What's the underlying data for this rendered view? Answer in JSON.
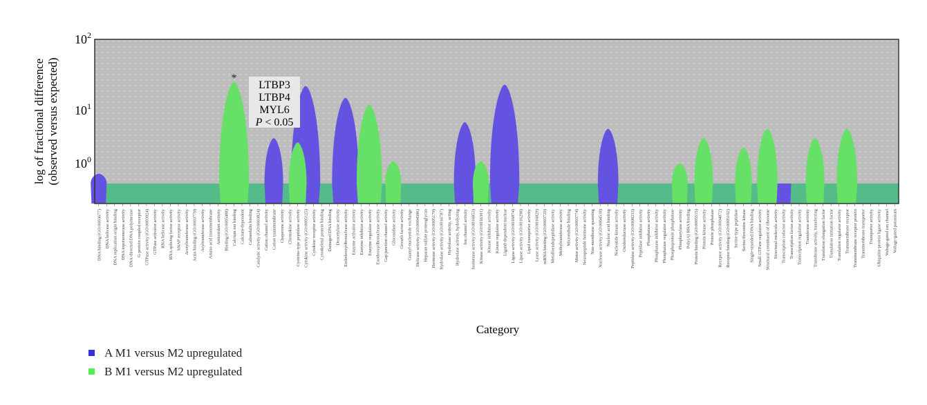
{
  "chart_data": {
    "type": "area",
    "title": "",
    "xlabel": "Category",
    "ylabel": "log of fractional difference",
    "ylabel_sub": "(observed versus expected)",
    "yscale": "log",
    "ylim": [
      0.5,
      100
    ],
    "yticks": [
      {
        "value": 1,
        "base": "10",
        "exp": "0"
      },
      {
        "value": 10,
        "base": "10",
        "exp": "1"
      },
      {
        "value": 100,
        "base": "10",
        "exp": "2"
      }
    ],
    "grid": true,
    "legend_position": "bottom-left",
    "annotation": {
      "category": "Calcium ion binding",
      "marker": "*",
      "lines": [
        "LTBP3",
        "LTBP4",
        "MYL6"
      ],
      "p_label": "P",
      "p_text": " < 0.05"
    },
    "categories": [
      "DNA binding (GO:0003677)",
      "DNA helicase activity",
      "DNA replication origin binding",
      "DNA topoisomerase activity",
      "DNA-directed DNA polymerase",
      "G-protein coupled receptor",
      "GTPase activity (GO:0003924)",
      "GTPase activator activity",
      "RNA helicase activity",
      "RNA splicing factor activity",
      "SNAP receptor activity",
      "Acetyltransferase activity",
      "Actin binding (GO:0003779)",
      "Acyltransferase activity",
      "Amino acid transmembrane",
      "Antioxidant activity",
      "Binding (GO:0005488)",
      "Calcium ion binding",
      "Calcium-dependent",
      "Calmodulin binding",
      "Catalytic activity (GO:0003824)",
      "Cation channel activity",
      "Cation transmembrane",
      "Chaperone activity",
      "Chemokine activity",
      "Cysteine-type peptidase activity",
      "Cytokine activity (GO:0005125)",
      "Cytokine receptor activity",
      "Cytoskeletal protein binding",
      "Damaged DNA binding",
      "Deacetylase activity",
      "Endodeoxyribonuclease activity",
      "Enzyme activator activity",
      "Enzyme inhibitor activity",
      "Enzyme regulator activity",
      "Exodeoxyribonuclease activity",
      "Gap junction channel activity",
      "Glucosidase activity",
      "Growth factor activity",
      "Guanyl-nucleotide exchange",
      "Helicase activity (GO:0004386)",
      "Heparan sulfate proteoglycan",
      "Hormone activity (GO:0005179)",
      "Hydrolase activity (GO:0016787)",
      "Hydrolase activity, acting",
      "Hydrolase activity, hydrolyzing",
      "Ion channel activity",
      "Isomerase activity (GO:0016853)",
      "Kinase activity (GO:0016301)",
      "Kinase inhibitor activity",
      "Kinase regulator activity",
      "Ligand-dependent nuclear",
      "Ligase activity (GO:0016874)",
      "Lipase activity (GO:0016298)",
      "Lipid transporter activity",
      "Lyase activity (GO:0016829)",
      "mRNA binding (GO:0003729)",
      "Metalloendopeptidase activity",
      "Methyltransferase activity",
      "Microtubule binding",
      "Motor activity (GO:0003774)",
      "Neuropeptide hormone activity",
      "Non-membrane spanning",
      "Nuclease activity (GO:0004518)",
      "Nucleic acid binding",
      "Nucleotide kinase activity",
      "Oxidoreductase activity",
      "Peptidase activity (GO:0008233)",
      "Peptidase inhibitor activity",
      "Phosphatase activity",
      "Phosphatase inhibitor activity",
      "Phosphatase regulator activity",
      "Phosphoprotein phosphatase",
      "Phosphorylase activity",
      "Poly(A) RNA binding",
      "Protein binding (GO:0005515)",
      "Protein kinase activity",
      "Protein phosphatase",
      "Receptor activity (GO:0004872)",
      "Receptor binding (GO:0005102)",
      "Serine-type peptidase",
      "Serine/threonine kinase",
      "Single-stranded DNA binding",
      "Small GTPase regulator activity",
      "Structural constituent of ribosome",
      "Structural molecule activity",
      "Transcription cofactor activity",
      "Transcription factor activity",
      "Transcription regulator activity",
      "Transferase activity",
      "Transferase activity, transferring",
      "Translation elongation factor",
      "Translation initiation factor",
      "Translation regulator activity",
      "Transmembrane receptor",
      "Transmembrane receptor protein",
      "Transmembrane transporter",
      "Transporter activity",
      "Ubiquitin-protein ligase activity",
      "Voltage-gated ion channel",
      "Voltage-gated potassium"
    ],
    "series": [
      {
        "name": "A M1 versus M2 upregulated",
        "color": "#6452e0",
        "points": [
          {
            "category": "DNA binding (GO:0003677)",
            "value": 0.7
          },
          {
            "category": "Cation transmembrane",
            "value": 3
          },
          {
            "category": "Cytokine activity (GO:0005125)",
            "value": 22
          },
          {
            "category": "Endodeoxyribonuclease activity",
            "value": 15
          },
          {
            "category": "Enzyme inhibitor activity",
            "value": 0.6
          },
          {
            "category": "Ion channel activity",
            "value": 6
          },
          {
            "category": "Ligand-dependent nuclear",
            "value": 23
          },
          {
            "category": "Nucleic acid binding",
            "value": 4.5
          },
          {
            "category": "Transcription cofactor activity",
            "value": 0.5
          }
        ]
      },
      {
        "name": "B M1 versus M2 upregulated",
        "color": "#66e066",
        "points": [
          {
            "category": "Calcium ion binding",
            "value": 25
          },
          {
            "category": "Cysteine-type peptidase activity",
            "value": 2.5
          },
          {
            "category": "Enzyme regulator activity",
            "value": 12
          },
          {
            "category": "Glucosidase activity",
            "value": 1.1
          },
          {
            "category": "Kinase activity (GO:0016301)",
            "value": 1.1
          },
          {
            "category": "Phosphorylase activity",
            "value": 1.0
          },
          {
            "category": "Protein kinase activity",
            "value": 3
          },
          {
            "category": "Serine/threonine kinase",
            "value": 2
          },
          {
            "category": "Structural constituent of ribosome",
            "value": 4.5
          },
          {
            "category": "Transferase activity, transferring",
            "value": 3
          },
          {
            "category": "Transmembrane receptor",
            "value": 4.5
          }
        ]
      }
    ],
    "baseline_color": "#55bb88",
    "background_color": "#bdbdbd"
  }
}
